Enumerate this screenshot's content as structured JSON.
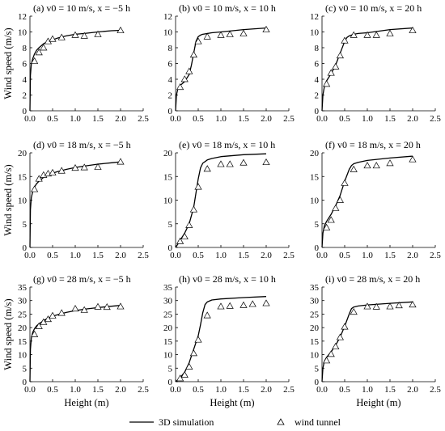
{
  "figure": {
    "ylabel": "Wind speed (m/s)",
    "xlabel": "Height (m)",
    "legend": {
      "line": "3D simulation",
      "marker": "wind tunnel",
      "position": "bottom"
    }
  },
  "chart_data": [
    {
      "type": "line",
      "title": "(a) v0 = 10 m/s, x = −5 h",
      "xlim": [
        0,
        2.5
      ],
      "ylim": [
        0,
        12
      ],
      "xticks": [
        0.0,
        0.5,
        1.0,
        1.5,
        2.0,
        2.5
      ],
      "yticks": [
        0,
        2,
        4,
        6,
        8,
        10,
        12
      ],
      "series": [
        {
          "name": "3D simulation",
          "kind": "line",
          "x": [
            0,
            0.01,
            0.03,
            0.06,
            0.1,
            0.15,
            0.2,
            0.3,
            0.4,
            0.5,
            0.6,
            0.8,
            1.0,
            1.2,
            1.5,
            1.8,
            2.0
          ],
          "y": [
            0,
            4.5,
            5.9,
            6.6,
            7.2,
            7.7,
            8.0,
            8.5,
            8.8,
            9.0,
            9.2,
            9.5,
            9.7,
            9.8,
            10.0,
            10.15,
            10.2
          ]
        },
        {
          "name": "wind tunnel",
          "kind": "marker",
          "x": [
            0.1,
            0.2,
            0.3,
            0.4,
            0.5,
            0.7,
            1.0,
            1.2,
            1.5,
            2.0
          ],
          "y": [
            6.3,
            7.4,
            8.0,
            8.8,
            9.1,
            9.3,
            9.6,
            9.5,
            9.7,
            10.2
          ]
        }
      ]
    },
    {
      "type": "line",
      "title": "(b) v0 = 10 m/s, x = 10 h",
      "xlim": [
        0,
        2.5
      ],
      "ylim": [
        0,
        12
      ],
      "xticks": [
        0.0,
        0.5,
        1.0,
        1.5,
        2.0,
        2.5
      ],
      "yticks": [
        0,
        2,
        4,
        6,
        8,
        10,
        12
      ],
      "series": [
        {
          "name": "3D simulation",
          "kind": "line",
          "x": [
            0,
            0.02,
            0.05,
            0.1,
            0.2,
            0.3,
            0.35,
            0.4,
            0.45,
            0.5,
            0.55,
            0.6,
            0.8,
            1.0,
            1.5,
            2.0
          ],
          "y": [
            0,
            2.0,
            2.8,
            3.2,
            3.7,
            4.6,
            5.8,
            7.3,
            8.8,
            9.4,
            9.6,
            9.7,
            9.9,
            10.0,
            10.3,
            10.5
          ]
        },
        {
          "name": "wind tunnel",
          "kind": "marker",
          "x": [
            0.1,
            0.2,
            0.3,
            0.4,
            0.5,
            0.7,
            1.0,
            1.2,
            1.5,
            2.0
          ],
          "y": [
            3.0,
            4.0,
            5.0,
            7.1,
            8.8,
            9.4,
            9.6,
            9.7,
            9.8,
            10.3
          ]
        }
      ]
    },
    {
      "type": "line",
      "title": "(c) v0 = 10 m/s, x = 20 h",
      "xlim": [
        0,
        2.5
      ],
      "ylim": [
        0,
        12
      ],
      "xticks": [
        0.0,
        0.5,
        1.0,
        1.5,
        2.0,
        2.5
      ],
      "yticks": [
        0,
        2,
        4,
        6,
        8,
        10,
        12
      ],
      "series": [
        {
          "name": "3D simulation",
          "kind": "line",
          "x": [
            0,
            0.02,
            0.05,
            0.1,
            0.2,
            0.3,
            0.4,
            0.5,
            0.55,
            0.6,
            0.7,
            0.8,
            1.0,
            1.5,
            2.0
          ],
          "y": [
            0,
            2.0,
            3.0,
            3.8,
            4.7,
            5.8,
            7.3,
            8.8,
            9.3,
            9.5,
            9.7,
            9.8,
            9.9,
            10.3,
            10.5
          ]
        },
        {
          "name": "wind tunnel",
          "kind": "marker",
          "x": [
            0.1,
            0.2,
            0.3,
            0.4,
            0.5,
            0.7,
            1.0,
            1.2,
            1.5,
            2.0
          ],
          "y": [
            3.4,
            4.8,
            5.6,
            7.0,
            8.9,
            9.6,
            9.6,
            9.6,
            9.8,
            10.2
          ]
        }
      ]
    },
    {
      "type": "line",
      "title": "(d) v0 = 18 m/s, x = −5 h",
      "xlim": [
        0,
        2.5
      ],
      "ylim": [
        0,
        20
      ],
      "xticks": [
        0.0,
        0.5,
        1.0,
        1.5,
        2.0,
        2.5
      ],
      "yticks": [
        0,
        5,
        10,
        15,
        20
      ],
      "series": [
        {
          "name": "3D simulation",
          "kind": "line",
          "x": [
            0,
            0.01,
            0.03,
            0.06,
            0.1,
            0.15,
            0.2,
            0.3,
            0.4,
            0.5,
            0.6,
            0.8,
            1.0,
            1.2,
            1.5,
            1.8,
            2.0
          ],
          "y": [
            0,
            8.0,
            10.5,
            11.8,
            12.8,
            13.5,
            14.0,
            14.8,
            15.3,
            15.7,
            16.0,
            16.5,
            16.9,
            17.2,
            17.6,
            17.9,
            18.1
          ]
        },
        {
          "name": "wind tunnel",
          "kind": "marker",
          "x": [
            0.1,
            0.2,
            0.3,
            0.4,
            0.5,
            0.7,
            1.0,
            1.2,
            1.5,
            2.0
          ],
          "y": [
            12.3,
            14.5,
            15.3,
            15.6,
            15.8,
            16.2,
            16.8,
            16.9,
            17.0,
            18.1
          ]
        }
      ]
    },
    {
      "type": "line",
      "title": "(e) v0 = 18 m/s, x = 10 h",
      "xlim": [
        0,
        2.5
      ],
      "ylim": [
        0,
        20
      ],
      "xticks": [
        0.0,
        0.5,
        1.0,
        1.5,
        2.0,
        2.5
      ],
      "yticks": [
        0,
        5,
        10,
        15,
        20
      ],
      "series": [
        {
          "name": "3D simulation",
          "kind": "line",
          "x": [
            0,
            0.05,
            0.1,
            0.2,
            0.3,
            0.4,
            0.45,
            0.5,
            0.55,
            0.6,
            0.7,
            0.8,
            1.0,
            1.5,
            2.0
          ],
          "y": [
            0,
            0.7,
            1.5,
            3.0,
            5.0,
            8.5,
            11.5,
            14.5,
            16.8,
            17.8,
            18.5,
            18.8,
            19.2,
            19.6,
            19.8
          ]
        },
        {
          "name": "wind tunnel",
          "kind": "marker",
          "x": [
            0.1,
            0.2,
            0.3,
            0.4,
            0.5,
            0.7,
            1.0,
            1.2,
            1.5,
            2.0
          ],
          "y": [
            1.3,
            2.3,
            4.7,
            8.0,
            12.8,
            16.6,
            17.6,
            17.6,
            17.9,
            18.0
          ]
        }
      ]
    },
    {
      "type": "line",
      "title": "(f) v0 = 18 m/s, x = 20 h",
      "xlim": [
        0,
        2.5
      ],
      "ylim": [
        0,
        20
      ],
      "xticks": [
        0.0,
        0.5,
        1.0,
        1.5,
        2.0,
        2.5
      ],
      "yticks": [
        0,
        5,
        10,
        15,
        20
      ],
      "series": [
        {
          "name": "3D simulation",
          "kind": "line",
          "x": [
            0,
            0.02,
            0.05,
            0.1,
            0.2,
            0.3,
            0.4,
            0.5,
            0.6,
            0.65,
            0.7,
            0.8,
            1.0,
            1.5,
            2.0
          ],
          "y": [
            0,
            3.0,
            4.5,
            5.5,
            7.0,
            8.8,
            11.0,
            14.0,
            16.5,
            17.3,
            17.7,
            18.0,
            18.4,
            18.9,
            19.3
          ]
        },
        {
          "name": "wind tunnel",
          "kind": "marker",
          "x": [
            0.1,
            0.2,
            0.3,
            0.4,
            0.5,
            0.7,
            1.0,
            1.2,
            1.5,
            2.0
          ],
          "y": [
            4.2,
            5.8,
            8.3,
            10.0,
            13.6,
            16.5,
            17.3,
            17.3,
            17.8,
            18.6
          ]
        }
      ]
    },
    {
      "type": "line",
      "title": "(g) v0 = 28 m/s, x = −5 h",
      "xlim": [
        0,
        2.5
      ],
      "ylim": [
        0,
        35
      ],
      "xticks": [
        0.0,
        0.5,
        1.0,
        1.5,
        2.0,
        2.5
      ],
      "yticks": [
        0,
        5,
        10,
        15,
        20,
        25,
        30,
        35
      ],
      "series": [
        {
          "name": "3D simulation",
          "kind": "line",
          "x": [
            0,
            0.01,
            0.03,
            0.06,
            0.1,
            0.15,
            0.2,
            0.3,
            0.4,
            0.5,
            0.6,
            0.8,
            1.0,
            1.2,
            1.5,
            1.8,
            2.0
          ],
          "y": [
            0,
            12.0,
            16.0,
            18.2,
            19.6,
            20.7,
            21.4,
            22.6,
            23.5,
            24.2,
            24.7,
            25.6,
            26.3,
            26.8,
            27.4,
            27.9,
            28.2
          ]
        },
        {
          "name": "wind tunnel",
          "kind": "marker",
          "x": [
            0.1,
            0.2,
            0.3,
            0.4,
            0.5,
            0.7,
            1.0,
            1.2,
            1.5,
            1.7,
            2.0
          ],
          "y": [
            17.5,
            20.5,
            22.0,
            23.1,
            24.4,
            25.4,
            27.0,
            26.5,
            27.7,
            27.6,
            27.8
          ]
        }
      ]
    },
    {
      "type": "line",
      "title": "(h) v0 = 28 m/s, x = 10 h",
      "xlim": [
        0,
        2.5
      ],
      "ylim": [
        0,
        35
      ],
      "xticks": [
        0.0,
        0.5,
        1.0,
        1.5,
        2.0,
        2.5
      ],
      "yticks": [
        0,
        5,
        10,
        15,
        20,
        25,
        30,
        35
      ],
      "series": [
        {
          "name": "3D simulation",
          "kind": "line",
          "x": [
            0,
            0.05,
            0.1,
            0.2,
            0.3,
            0.4,
            0.5,
            0.55,
            0.6,
            0.65,
            0.7,
            0.8,
            1.0,
            1.5,
            2.0
          ],
          "y": [
            0,
            0.7,
            1.5,
            3.5,
            7.0,
            12.0,
            17.0,
            21.0,
            25.5,
            28.5,
            29.5,
            30.2,
            30.6,
            31.1,
            31.5
          ]
        },
        {
          "name": "wind tunnel",
          "kind": "marker",
          "x": [
            0.1,
            0.2,
            0.3,
            0.4,
            0.5,
            0.7,
            1.0,
            1.2,
            1.5,
            1.7,
            2.0
          ],
          "y": [
            1.2,
            2.5,
            5.5,
            10.5,
            15.5,
            24.5,
            27.8,
            28.0,
            28.3,
            28.7,
            29.0
          ]
        }
      ]
    },
    {
      "type": "line",
      "title": "(i) v0 = 28 m/s, x = 20 h",
      "xlim": [
        0,
        2.5
      ],
      "ylim": [
        0,
        35
      ],
      "xticks": [
        0.0,
        0.5,
        1.0,
        1.5,
        2.0,
        2.5
      ],
      "yticks": [
        0,
        5,
        10,
        15,
        20,
        25,
        30,
        35
      ],
      "series": [
        {
          "name": "3D simulation",
          "kind": "line",
          "x": [
            0,
            0.02,
            0.05,
            0.1,
            0.2,
            0.3,
            0.4,
            0.5,
            0.6,
            0.65,
            0.7,
            0.8,
            1.0,
            1.5,
            2.0
          ],
          "y": [
            0,
            5.0,
            7.5,
            9.0,
            11.0,
            13.5,
            16.5,
            20.5,
            25.0,
            27.0,
            27.6,
            28.0,
            28.4,
            29.0,
            29.5
          ]
        },
        {
          "name": "wind tunnel",
          "kind": "marker",
          "x": [
            0.1,
            0.2,
            0.3,
            0.4,
            0.5,
            0.7,
            1.0,
            1.2,
            1.5,
            1.7,
            2.0
          ],
          "y": [
            7.8,
            10.2,
            13.0,
            16.4,
            20.3,
            25.8,
            27.8,
            27.7,
            27.8,
            28.2,
            28.5
          ]
        }
      ]
    }
  ]
}
